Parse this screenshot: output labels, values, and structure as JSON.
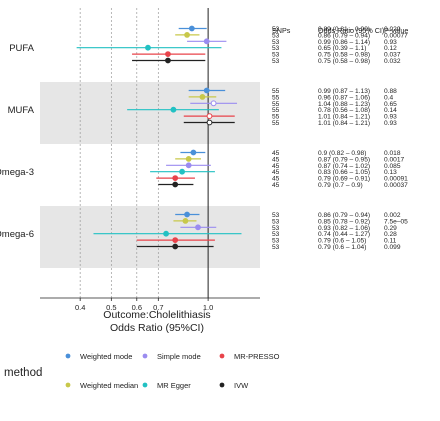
{
  "chart_data": {
    "type": "forest",
    "x_scale": "log",
    "xlim": [
      0.3,
      1.45
    ],
    "x_ticks": [
      "0.4",
      "0.5",
      "0.6",
      "0.7",
      "1.0"
    ],
    "x_tick_values": [
      0.4,
      0.5,
      0.6,
      0.7,
      1.0
    ],
    "minor_gridlines": [
      0.4,
      0.5,
      0.6,
      0.7
    ],
    "reference_line": 1.0,
    "xlabel_line1": "Outcome:Cholelithiasis",
    "xlabel_line2": "Odds Ratio (95%CI)",
    "table_headers": {
      "snps": "SNPs",
      "or": "Odds Ratio (95% CI)",
      "p": "P-value"
    },
    "legend": {
      "title": "method",
      "entries": [
        {
          "name": "Weighted mode",
          "color": "#4a90d9"
        },
        {
          "name": "Simple mode",
          "color": "#9b8cf0"
        },
        {
          "name": "MR-PRESSO",
          "color": "#e8434a"
        },
        {
          "name": "Weighted median",
          "color": "#c8c84a"
        },
        {
          "name": "MR Egger",
          "color": "#22c1c3"
        },
        {
          "name": "IVW",
          "color": "#222222"
        }
      ]
    },
    "groups": [
      {
        "label": "PUFA",
        "shaded": false,
        "rows": [
          {
            "method": "Weighted mode",
            "color": "#4a90d9",
            "or": 0.89,
            "lo": 0.81,
            "hi": 0.99,
            "snps": "53",
            "or_text": "0.89 (0.81 – 0.99)",
            "p": "0.029"
          },
          {
            "method": "Weighted median",
            "color": "#c8c84a",
            "or": 0.86,
            "lo": 0.79,
            "hi": 0.94,
            "snps": "53",
            "or_text": "0.86 (0.79 – 0.94)",
            "p": "0.00077"
          },
          {
            "method": "Simple mode",
            "color": "#9b8cf0",
            "or": 0.99,
            "lo": 0.86,
            "hi": 1.14,
            "snps": "53",
            "or_text": "0.99 (0.86 – 1.14)",
            "p": "0.93"
          },
          {
            "method": "MR Egger",
            "color": "#22c1c3",
            "or": 0.65,
            "lo": 0.39,
            "hi": 1.1,
            "snps": "53",
            "or_text": "0.65 (0.39 – 1.1)",
            "p": "0.12"
          },
          {
            "method": "MR-PRESSO",
            "color": "#e8434a",
            "or": 0.75,
            "lo": 0.58,
            "hi": 0.98,
            "snps": "53",
            "or_text": "0.75 (0.58 – 0.98)",
            "p": "0.037"
          },
          {
            "method": "IVW",
            "color": "#222222",
            "or": 0.75,
            "lo": 0.58,
            "hi": 0.98,
            "snps": "53",
            "or_text": "0.75 (0.58 – 0.98)",
            "p": "0.032"
          }
        ]
      },
      {
        "label": "MUFA",
        "shaded": true,
        "rows": [
          {
            "method": "Weighted mode",
            "color": "#4a90d9",
            "or": 0.99,
            "lo": 0.87,
            "hi": 1.13,
            "snps": "55",
            "or_text": "0.99 (0.87 – 1.13)",
            "p": "0.88"
          },
          {
            "method": "Weighted median",
            "color": "#c8c84a",
            "or": 0.96,
            "lo": 0.87,
            "hi": 1.06,
            "snps": "55",
            "or_text": "0.96 (0.87 – 1.06)",
            "p": "0.4"
          },
          {
            "method": "Simple mode",
            "color": "#9b8cf0",
            "or": 1.04,
            "lo": 0.88,
            "hi": 1.23,
            "snps": "55",
            "or_text": "1.04 (0.88 – 1.23)",
            "p": "0.65"
          },
          {
            "method": "MR Egger",
            "color": "#22c1c3",
            "or": 0.78,
            "lo": 0.56,
            "hi": 1.08,
            "snps": "55",
            "or_text": "0.78 (0.56 – 1.08)",
            "p": "0.14"
          },
          {
            "method": "MR-PRESSO",
            "color": "#e8434a",
            "or": 1.01,
            "lo": 0.84,
            "hi": 1.21,
            "snps": "55",
            "or_text": "1.01 (0.84 – 1.21)",
            "p": "0.93"
          },
          {
            "method": "IVW",
            "color": "#222222",
            "or": 1.01,
            "lo": 0.84,
            "hi": 1.21,
            "snps": "55",
            "or_text": "1.01 (0.84 – 1.21)",
            "p": "0.93"
          }
        ]
      },
      {
        "label": "Omega-3",
        "shaded": false,
        "rows": [
          {
            "method": "Weighted mode",
            "color": "#4a90d9",
            "or": 0.9,
            "lo": 0.82,
            "hi": 0.98,
            "snps": "45",
            "or_text": "0.9 (0.82 – 0.98)",
            "p": "0.018"
          },
          {
            "method": "Weighted median",
            "color": "#c8c84a",
            "or": 0.87,
            "lo": 0.79,
            "hi": 0.95,
            "snps": "45",
            "or_text": "0.87 (0.79 – 0.95)",
            "p": "0.0017"
          },
          {
            "method": "Simple mode",
            "color": "#9b8cf0",
            "or": 0.87,
            "lo": 0.74,
            "hi": 1.02,
            "snps": "45",
            "or_text": "0.87 (0.74 – 1.02)",
            "p": "0.085"
          },
          {
            "method": "MR Egger",
            "color": "#22c1c3",
            "or": 0.83,
            "lo": 0.66,
            "hi": 1.05,
            "snps": "45",
            "or_text": "0.83 (0.66 – 1.05)",
            "p": "0.13"
          },
          {
            "method": "MR-PRESSO",
            "color": "#e8434a",
            "or": 0.79,
            "lo": 0.69,
            "hi": 0.91,
            "snps": "45",
            "or_text": "0.79 (0.69 – 0.91)",
            "p": "0.00091"
          },
          {
            "method": "IVW",
            "color": "#222222",
            "or": 0.79,
            "lo": 0.7,
            "hi": 0.9,
            "snps": "45",
            "or_text": "0.79 (0.7 – 0.9)",
            "p": "0.00037"
          }
        ]
      },
      {
        "label": "Omega-6",
        "shaded": true,
        "rows": [
          {
            "method": "Weighted mode",
            "color": "#4a90d9",
            "or": 0.86,
            "lo": 0.79,
            "hi": 0.94,
            "snps": "53",
            "or_text": "0.86 (0.79 – 0.94)",
            "p": "0.002"
          },
          {
            "method": "Weighted median",
            "color": "#c8c84a",
            "or": 0.85,
            "lo": 0.78,
            "hi": 0.92,
            "snps": "53",
            "or_text": "0.85 (0.78 – 0.92)",
            "p": "7.5e–05"
          },
          {
            "method": "Simple mode",
            "color": "#9b8cf0",
            "or": 0.93,
            "lo": 0.82,
            "hi": 1.06,
            "snps": "53",
            "or_text": "0.93 (0.82 – 1.06)",
            "p": "0.29"
          },
          {
            "method": "MR Egger",
            "color": "#22c1c3",
            "or": 0.74,
            "lo": 0.44,
            "hi": 1.27,
            "snps": "53",
            "or_text": "0.74 (0.44 – 1.27)",
            "p": "0.28"
          },
          {
            "method": "MR-PRESSO",
            "color": "#e8434a",
            "or": 0.79,
            "lo": 0.6,
            "hi": 1.05,
            "snps": "53",
            "or_text": "0.79 (0.6 – 1.05)",
            "p": "0.11"
          },
          {
            "method": "IVW",
            "color": "#222222",
            "or": 0.79,
            "lo": 0.6,
            "hi": 1.04,
            "snps": "53",
            "or_text": "0.79 (0.6 – 1.04)",
            "p": "0.099"
          }
        ]
      }
    ]
  }
}
